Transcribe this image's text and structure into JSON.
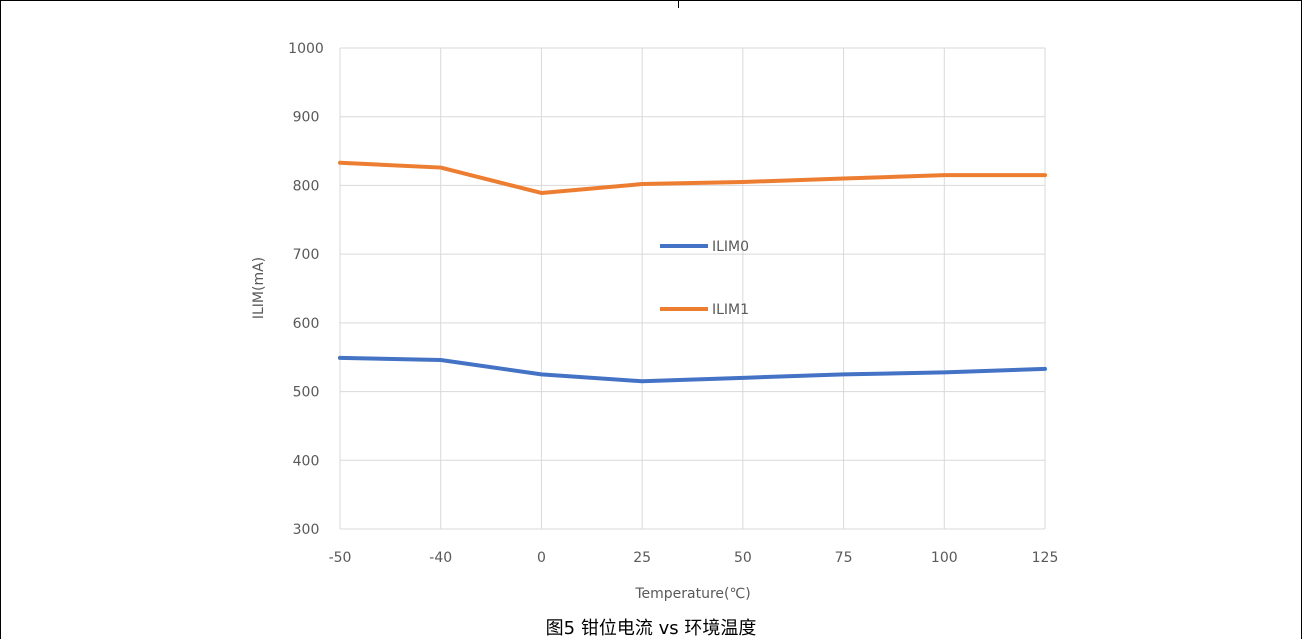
{
  "chart_data": {
    "type": "line",
    "title": "",
    "xlabel": "Temperature(℃)",
    "ylabel": "ILIM(mA)",
    "categories": [
      "-50",
      "-40",
      "0",
      "25",
      "50",
      "75",
      "100",
      "125"
    ],
    "ylim": [
      300,
      1000
    ],
    "yticks": [
      300,
      400,
      500,
      600,
      700,
      800,
      900,
      1000
    ],
    "grid": true,
    "legend_position": "center",
    "series": [
      {
        "name": "ILIM0",
        "color": "#4472C4",
        "values": [
          549,
          546,
          525,
          515,
          520,
          525,
          528,
          533
        ]
      },
      {
        "name": "ILIM1",
        "color": "#ED7D31",
        "values": [
          833,
          826,
          789,
          802,
          805,
          810,
          815,
          815
        ]
      }
    ]
  },
  "caption": "图5 钳位电流 vs 环境温度"
}
